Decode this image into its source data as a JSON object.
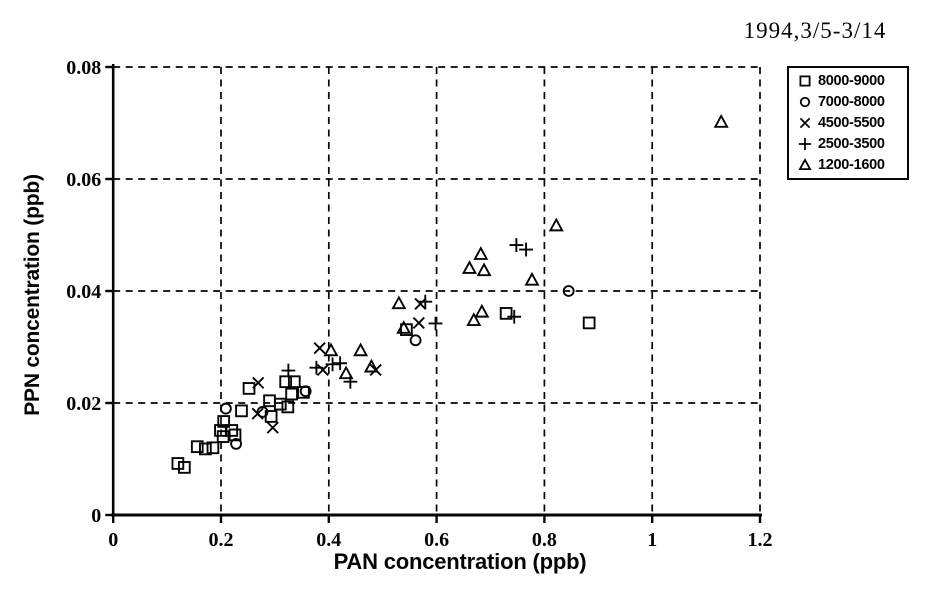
{
  "title": "1994,3/5-3/14",
  "colors": {
    "ink": "#050505",
    "background": "#ffffff"
  },
  "chart_data": {
    "type": "scatter",
    "title": "1994,3/5-3/14",
    "xlabel": "PAN concentration (ppb)",
    "ylabel": "PPN concentration  (ppb)",
    "xlim": [
      0,
      1.2
    ],
    "ylim": [
      0,
      0.08
    ],
    "grid": "dashed",
    "legend_position": "outside-top-right",
    "xticks": {
      "values": [
        0,
        0.2,
        0.4,
        0.6,
        0.8,
        1.0,
        1.2
      ],
      "labels": [
        "0",
        "0.2",
        "0.4",
        "0.6",
        "0.8",
        "1",
        "1.2"
      ]
    },
    "yticks": {
      "values": [
        0,
        0.02,
        0.04,
        0.06,
        0.08
      ],
      "labels": [
        "0",
        "0.02",
        "0.04",
        "0.06",
        "0.08"
      ]
    },
    "series": [
      {
        "name": "8000-9000",
        "marker": "square",
        "points": [
          [
            0.12,
            0.0092
          ],
          [
            0.132,
            0.0085
          ],
          [
            0.156,
            0.0122
          ],
          [
            0.171,
            0.0118
          ],
          [
            0.185,
            0.012
          ],
          [
            0.199,
            0.0151
          ],
          [
            0.205,
            0.0167
          ],
          [
            0.204,
            0.014
          ],
          [
            0.22,
            0.0151
          ],
          [
            0.226,
            0.0143
          ],
          [
            0.238,
            0.0186
          ],
          [
            0.252,
            0.0226
          ],
          [
            0.293,
            0.0176
          ],
          [
            0.29,
            0.0204
          ],
          [
            0.31,
            0.0198
          ],
          [
            0.32,
            0.0238
          ],
          [
            0.336,
            0.0238
          ],
          [
            0.331,
            0.0216
          ],
          [
            0.324,
            0.0193
          ],
          [
            0.353,
            0.0219
          ],
          [
            0.544,
            0.0331
          ],
          [
            0.729,
            0.036
          ],
          [
            0.883,
            0.0343
          ]
        ]
      },
      {
        "name": "7000-8000",
        "marker": "circle",
        "points": [
          [
            0.209,
            0.019
          ],
          [
            0.228,
            0.0127
          ],
          [
            0.277,
            0.0184
          ],
          [
            0.357,
            0.0221
          ],
          [
            0.561,
            0.0312
          ],
          [
            0.845,
            0.04
          ]
        ]
      },
      {
        "name": "4500-5500",
        "marker": "x",
        "points": [
          [
            0.269,
            0.0236
          ],
          [
            0.268,
            0.0181
          ],
          [
            0.296,
            0.0156
          ],
          [
            0.383,
            0.0298
          ],
          [
            0.389,
            0.0259
          ],
          [
            0.487,
            0.0259
          ],
          [
            0.567,
            0.0343
          ],
          [
            0.57,
            0.0377
          ]
        ]
      },
      {
        "name": "2500-3500",
        "marker": "plus",
        "points": [
          [
            0.325,
            0.0258
          ],
          [
            0.377,
            0.0263
          ],
          [
            0.407,
            0.0269
          ],
          [
            0.421,
            0.0271
          ],
          [
            0.44,
            0.0238
          ],
          [
            0.579,
            0.0381
          ],
          [
            0.598,
            0.0342
          ],
          [
            0.744,
            0.0354
          ],
          [
            0.748,
            0.0482
          ],
          [
            0.766,
            0.0474
          ]
        ]
      },
      {
        "name": "1200-1600",
        "marker": "triangle",
        "points": [
          [
            0.404,
            0.0294
          ],
          [
            0.432,
            0.0253
          ],
          [
            0.459,
            0.0294
          ],
          [
            0.479,
            0.0265
          ],
          [
            0.53,
            0.0378
          ],
          [
            0.539,
            0.0334
          ],
          [
            0.661,
            0.0441
          ],
          [
            0.682,
            0.0466
          ],
          [
            0.688,
            0.0437
          ],
          [
            0.669,
            0.0348
          ],
          [
            0.684,
            0.0363
          ],
          [
            0.777,
            0.042
          ],
          [
            0.822,
            0.0517
          ],
          [
            1.128,
            0.0702
          ]
        ]
      }
    ]
  }
}
